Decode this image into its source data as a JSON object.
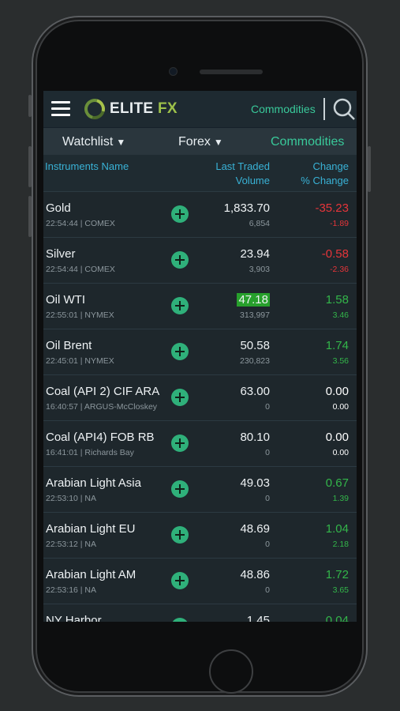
{
  "header": {
    "logo_text": "ELITE",
    "logo_accent": "FX",
    "section_label": "Commodities"
  },
  "tabs": [
    {
      "label": "Watchlist",
      "has_dropdown": true,
      "active": false
    },
    {
      "label": "Forex",
      "has_dropdown": true,
      "active": false
    },
    {
      "label": "Commodities",
      "has_dropdown": false,
      "active": true
    }
  ],
  "columns": {
    "instrument": "Instruments Name",
    "last_traded": "Last Traded",
    "volume": "Volume",
    "change": "Change",
    "pct_change": "% Change"
  },
  "rows": [
    {
      "name": "Gold",
      "sub": "22:54:44 | COMEX",
      "last": "1,833.70",
      "volume": "6,854",
      "change": "-35.23",
      "pct": "-1.89",
      "trend": "neg",
      "highlight": false
    },
    {
      "name": "Silver",
      "sub": "22:54:44 | COMEX",
      "last": "23.94",
      "volume": "3,903",
      "change": "-0.58",
      "pct": "-2.36",
      "trend": "neg",
      "highlight": false
    },
    {
      "name": "Oil WTI",
      "sub": "22:55:01 | NYMEX",
      "last": "47.18",
      "volume": "313,997",
      "change": "1.58",
      "pct": "3.46",
      "trend": "pos",
      "highlight": true
    },
    {
      "name": "Oil Brent",
      "sub": "22:45:01 | NYMEX",
      "last": "50.58",
      "volume": "230,823",
      "change": "1.74",
      "pct": "3.56",
      "trend": "pos",
      "highlight": false
    },
    {
      "name": "Coal (API 2)  CIF ARA",
      "sub": "16:40:57 | ARGUS-McCloskey",
      "last": "63.00",
      "volume": "0",
      "change": "0.00",
      "pct": "0.00",
      "trend": "neu",
      "highlight": false
    },
    {
      "name": "Coal (API4) FOB RB",
      "sub": "16:41:01 | Richards Bay",
      "last": "80.10",
      "volume": "0",
      "change": "0.00",
      "pct": "0.00",
      "trend": "neu",
      "highlight": false
    },
    {
      "name": "Arabian Light Asia",
      "sub": "22:53:10 | NA",
      "last": "49.03",
      "volume": "0",
      "change": "0.67",
      "pct": "1.39",
      "trend": "pos",
      "highlight": false
    },
    {
      "name": "Arabian Light EU",
      "sub": "22:53:12 | NA",
      "last": "48.69",
      "volume": "0",
      "change": "1.04",
      "pct": "2.18",
      "trend": "pos",
      "highlight": false
    },
    {
      "name": "Arabian Light AM",
      "sub": "22:53:16 | NA",
      "last": "48.86",
      "volume": "0",
      "change": "1.72",
      "pct": "3.65",
      "trend": "pos",
      "highlight": false
    },
    {
      "name": "NY Harbor",
      "sub": "",
      "last": "1.45",
      "volume": "",
      "change": "0.04",
      "pct": "",
      "trend": "pos",
      "highlight": false
    }
  ],
  "colors": {
    "accent": "#39c99a",
    "negative": "#e6353a",
    "positive": "#33b64a",
    "highlight": "#27a02c"
  },
  "icons": {
    "menu": "menu-icon",
    "search": "search-icon",
    "add": "add-icon",
    "dropdown": "triangle-down-icon"
  }
}
